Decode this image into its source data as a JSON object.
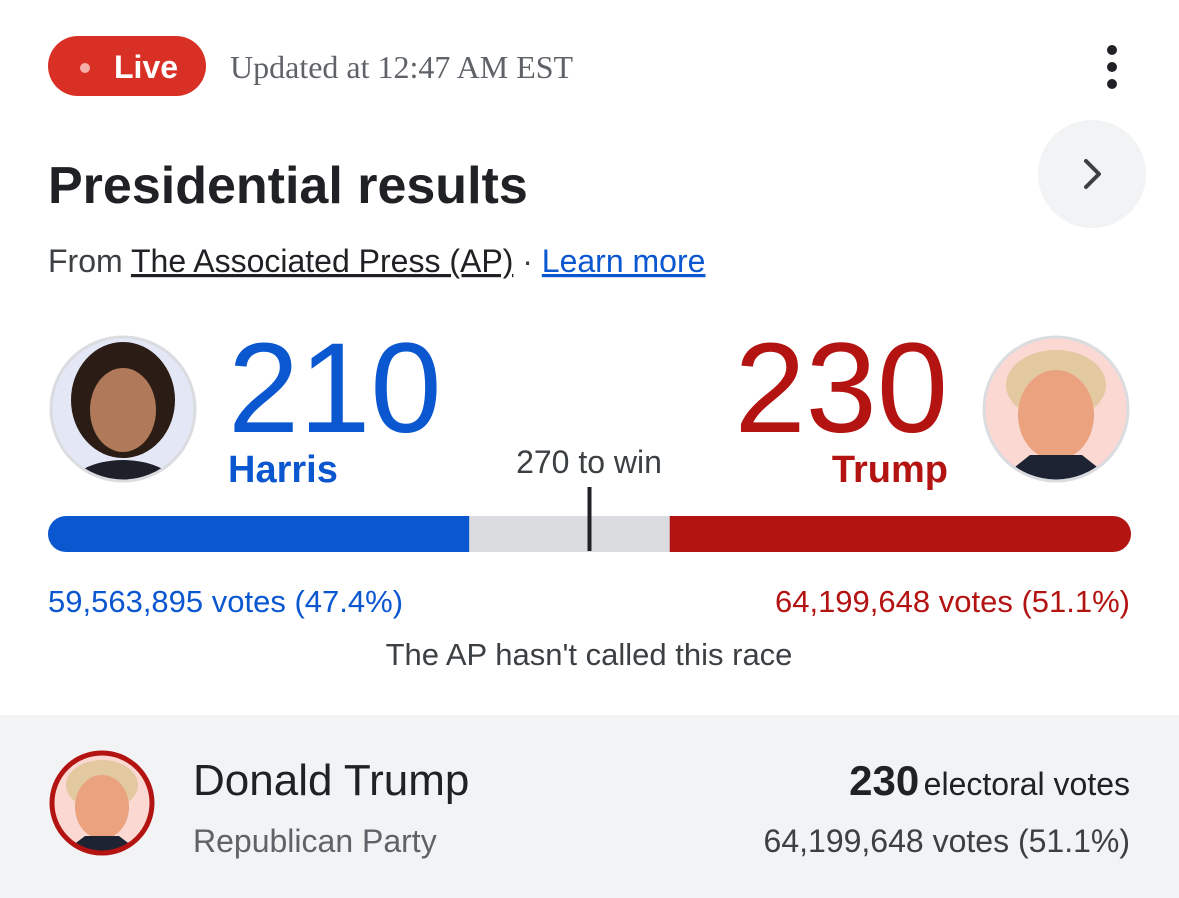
{
  "header": {
    "live": "Live",
    "updated": "Updated at 12:47 AM EST"
  },
  "title": "Presidential results",
  "source": {
    "from": "From",
    "link": "The Associated Press (AP)",
    "separator": "·",
    "learn_more": "Learn more"
  },
  "candidates": [
    {
      "name": "Harris",
      "electoral": 210,
      "votes": "59,563,895 votes (47.4%)",
      "color": "#0b57d0"
    },
    {
      "name": "Trump",
      "electoral": 230,
      "votes": "64,199,648 votes (51.1%)",
      "color": "#b31412"
    }
  ],
  "threshold": {
    "value": 270,
    "label": "270 to win"
  },
  "status": "The AP hasn't called this race",
  "leader": {
    "name": "Donald Trump",
    "party": "Republican Party",
    "electoral": 230,
    "electoral_label": "electoral votes",
    "votes": "64,199,648 votes (51.1%)"
  }
}
